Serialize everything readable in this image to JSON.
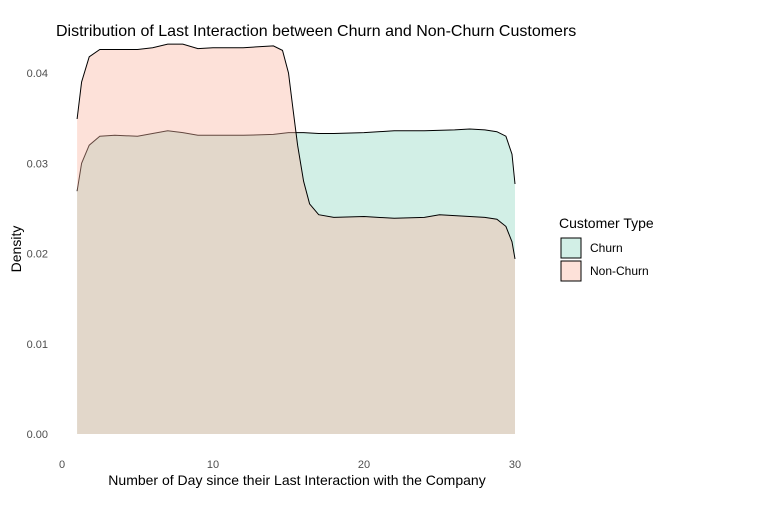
{
  "chart_data": {
    "type": "area",
    "subtype": "density",
    "title": "Distribution of Last Interaction between Churn and Non-Churn Customers",
    "xlabel": "Number of Day since their Last Interaction with the Company",
    "ylabel": "Density",
    "xlim": [
      0,
      30
    ],
    "ylim": [
      0,
      0.045
    ],
    "x_ticks": [
      0,
      10,
      20,
      30
    ],
    "y_ticks": [
      0.0,
      0.01,
      0.02,
      0.03,
      0.04
    ],
    "y_tick_labels": [
      "0.00",
      "0.01",
      "0.02",
      "0.03",
      "0.04"
    ],
    "grid": false,
    "legend": {
      "title": "Customer Type",
      "position": "right",
      "entries": [
        "Churn",
        "Non-Churn"
      ]
    },
    "series": [
      {
        "name": "Churn",
        "color": "#8fd6c0",
        "x": [
          1,
          1.3,
          1.8,
          2.5,
          3.5,
          5,
          6,
          7,
          8,
          9,
          10,
          12,
          14,
          15,
          16,
          17,
          18,
          20,
          22,
          24,
          26,
          27,
          28,
          28.8,
          29.4,
          29.8,
          30
        ],
        "y": [
          0.0269,
          0.03,
          0.032,
          0.033,
          0.0331,
          0.033,
          0.0333,
          0.0336,
          0.0334,
          0.0331,
          0.0331,
          0.0331,
          0.0332,
          0.0334,
          0.0334,
          0.0333,
          0.0333,
          0.0334,
          0.0336,
          0.0336,
          0.0337,
          0.0338,
          0.0337,
          0.0335,
          0.033,
          0.031,
          0.0277
        ]
      },
      {
        "name": "Non-Churn",
        "color": "#fbb59f",
        "x": [
          1,
          1.3,
          1.8,
          2.5,
          3.5,
          5,
          6,
          7,
          8,
          9,
          10,
          11,
          12,
          13,
          14,
          14.6,
          15.0,
          15.3,
          15.6,
          16.0,
          16.4,
          17,
          18,
          20,
          22,
          24,
          25,
          26,
          27,
          28,
          28.8,
          29.4,
          29.8,
          30
        ],
        "y": [
          0.0349,
          0.039,
          0.0418,
          0.0426,
          0.0426,
          0.0426,
          0.0428,
          0.0432,
          0.0432,
          0.0427,
          0.0428,
          0.0428,
          0.0428,
          0.0429,
          0.043,
          0.0425,
          0.04,
          0.036,
          0.032,
          0.028,
          0.0255,
          0.0243,
          0.024,
          0.0241,
          0.0239,
          0.024,
          0.0243,
          0.0242,
          0.0241,
          0.024,
          0.0238,
          0.023,
          0.0213,
          0.0194
        ]
      }
    ]
  }
}
